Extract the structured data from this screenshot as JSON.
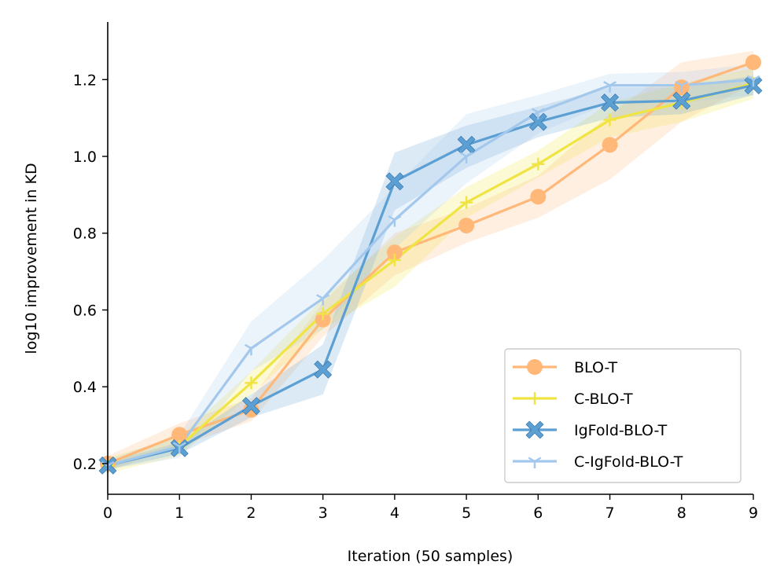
{
  "chart_data": {
    "type": "line",
    "xlabel": "Iteration (50 samples)",
    "ylabel": "log10 improvement in KD",
    "xlim": [
      0,
      9
    ],
    "ylim": [
      0.12,
      1.35
    ],
    "xticks": [
      0,
      1,
      2,
      3,
      4,
      5,
      6,
      7,
      8,
      9
    ],
    "yticks": [
      0.2,
      0.4,
      0.6,
      0.8,
      1.0,
      1.2
    ],
    "ytick_labels": [
      "0.2",
      "0.4",
      "0.6",
      "0.8",
      "1.0",
      "1.2"
    ],
    "legend_position": "lower-right",
    "x": [
      0,
      1,
      2,
      3,
      4,
      5,
      6,
      7,
      8,
      9
    ],
    "series": [
      {
        "name": "BLO-T",
        "color": "#FFB878",
        "marker": "circle",
        "values": [
          0.2,
          0.275,
          0.34,
          0.575,
          0.75,
          0.82,
          0.895,
          1.03,
          1.18,
          1.245
        ],
        "lower": [
          0.18,
          0.245,
          0.31,
          0.53,
          0.69,
          0.775,
          0.84,
          0.94,
          1.09,
          1.19
        ],
        "upper": [
          0.22,
          0.305,
          0.37,
          0.62,
          0.8,
          0.865,
          0.95,
          1.11,
          1.245,
          1.275
        ]
      },
      {
        "name": "C-BLO-T",
        "color": "#F0E442",
        "marker": "plus",
        "values": [
          0.195,
          0.245,
          0.41,
          0.59,
          0.73,
          0.88,
          0.98,
          1.095,
          1.14,
          1.19
        ],
        "lower": [
          0.175,
          0.22,
          0.38,
          0.55,
          0.66,
          0.84,
          0.945,
          1.05,
          1.09,
          1.15
        ],
        "upper": [
          0.215,
          0.27,
          0.44,
          0.63,
          0.79,
          0.92,
          1.015,
          1.14,
          1.19,
          1.23
        ]
      },
      {
        "name": "IgFold-BLO-T",
        "color": "#5B9FD3",
        "marker": "x-filled",
        "values": [
          0.195,
          0.24,
          0.35,
          0.445,
          0.935,
          1.03,
          1.09,
          1.14,
          1.145,
          1.185
        ],
        "lower": [
          0.185,
          0.225,
          0.32,
          0.38,
          0.86,
          0.97,
          1.05,
          1.1,
          1.11,
          1.16
        ],
        "upper": [
          0.205,
          0.255,
          0.38,
          0.51,
          1.01,
          1.08,
          1.13,
          1.18,
          1.18,
          1.21
        ]
      },
      {
        "name": "C-IgFold-BLO-T",
        "color": "#A3C8EC",
        "marker": "tri",
        "values": [
          0.195,
          0.245,
          0.5,
          0.63,
          0.835,
          1.0,
          1.115,
          1.185,
          1.185,
          1.2
        ],
        "lower": [
          0.185,
          0.215,
          0.44,
          0.55,
          0.76,
          0.93,
          1.06,
          1.14,
          1.14,
          1.16
        ],
        "upper": [
          0.21,
          0.275,
          0.57,
          0.73,
          0.92,
          1.11,
          1.16,
          1.215,
          1.22,
          1.24
        ]
      }
    ]
  }
}
